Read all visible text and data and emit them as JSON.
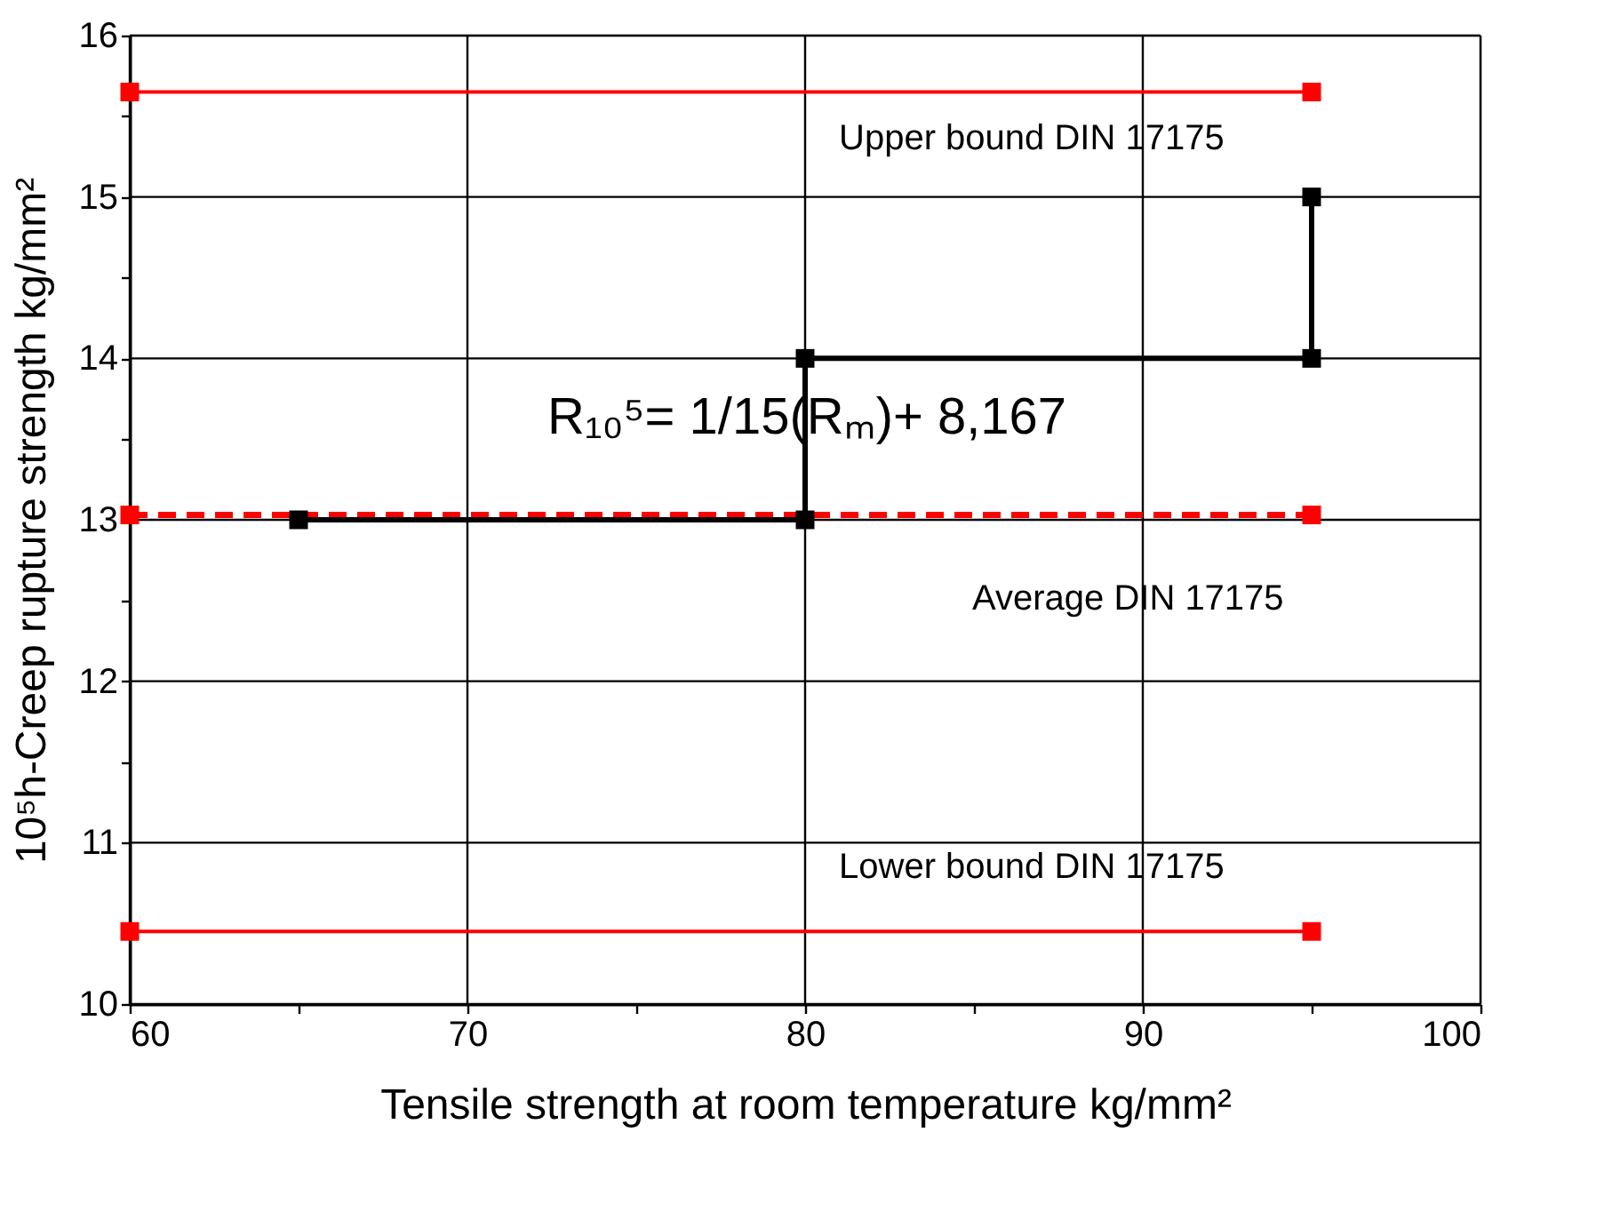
{
  "chart_data": {
    "type": "line",
    "xlabel": "Tensile strength at room temperature kg/mm²",
    "ylabel": "10⁵h-Creep rupture strength kg/mm²",
    "xlim": [
      60,
      100
    ],
    "xticks": [
      60,
      {
        "value": 65,
        "label": null
      },
      70,
      {
        "value": 75,
        "label": null
      },
      80,
      {
        "value": 85,
        "label": null
      },
      90,
      {
        "value": 95,
        "label": null
      },
      100
    ],
    "ylim": [
      10,
      16
    ],
    "yticks": [
      10,
      {
        "value": 10.5,
        "label": null
      },
      11,
      {
        "value": 11.5,
        "label": null
      },
      12,
      {
        "value": 12.5,
        "label": null
      },
      13,
      {
        "value": 13.5,
        "label": null
      },
      14,
      {
        "value": 14.5,
        "label": null
      },
      15,
      {
        "value": 15.5,
        "label": null
      },
      16
    ],
    "grid": true,
    "marker": "square",
    "series": [
      {
        "color": "#ff0000",
        "x": [
          60,
          95
        ],
        "values": [
          15.65,
          15.65
        ],
        "line_style": "solid"
      },
      {
        "color": "#ff0000",
        "x": [
          60,
          95
        ],
        "values": [
          13.03,
          13.03
        ],
        "line_style": "dashed"
      },
      {
        "color": "#ff0000",
        "x": [
          60,
          95
        ],
        "values": [
          10.45,
          10.45
        ],
        "line_style": "solid"
      },
      {
        "color": "#000000",
        "x": [
          65,
          80,
          80,
          95,
          95
        ],
        "values": [
          13,
          13,
          14,
          14,
          15
        ],
        "line_style": "solid"
      }
    ],
    "annotations": [
      "Upper bound DIN 17175",
      "Average DIN 17175",
      "Lower bound DIN 17175",
      "R₁₀⁵= 1/15(Rₘ)+ 8,167"
    ]
  }
}
